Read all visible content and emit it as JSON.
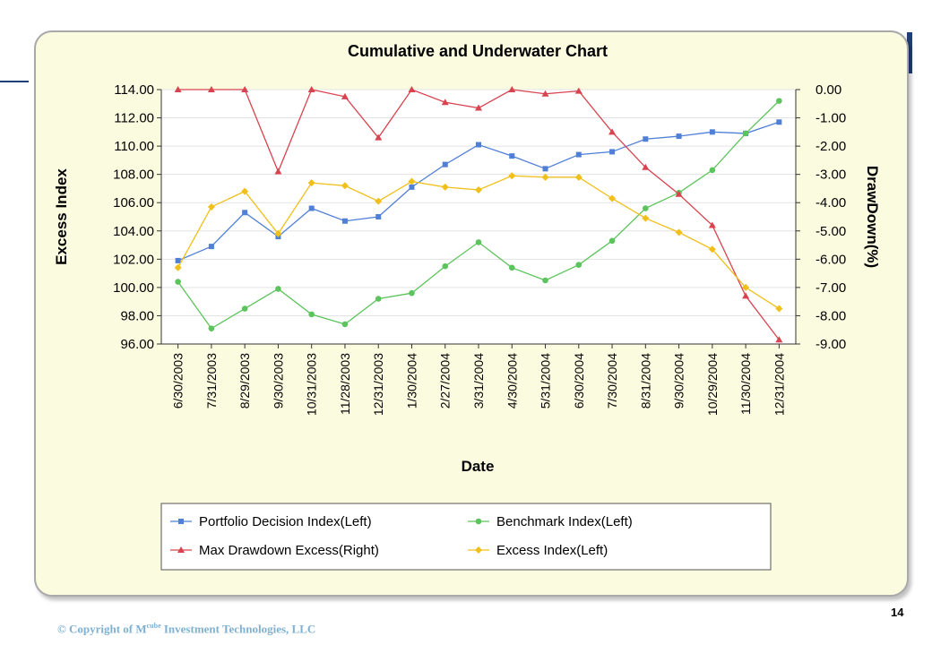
{
  "chart_data": {
    "type": "line",
    "title": "Cumulative and Underwater Chart",
    "xlabel": "Date",
    "ylabel": "Excess Index",
    "y2label": "DrawDown(%)",
    "ylim": [
      96,
      114
    ],
    "y2lim": [
      -9,
      0
    ],
    "yticks": [
      "114.00",
      "112.00",
      "110.00",
      "108.00",
      "106.00",
      "104.00",
      "102.00",
      "100.00",
      "98.00",
      "96.00"
    ],
    "y2ticks": [
      "0.00",
      "-1.00",
      "-2.00",
      "-3.00",
      "-4.00",
      "-5.00",
      "-6.00",
      "-7.00",
      "-8.00",
      "-9.00"
    ],
    "categories": [
      "6/30/2003",
      "7/31/2003",
      "8/29/2003",
      "9/30/2003",
      "10/31/2003",
      "11/28/2003",
      "12/31/2003",
      "1/30/2004",
      "2/27/2004",
      "3/31/2004",
      "4/30/2004",
      "5/31/2004",
      "6/30/2004",
      "7/30/2004",
      "8/31/2004",
      "9/30/2004",
      "10/29/2004",
      "11/30/2004",
      "12/31/2004"
    ],
    "series": [
      {
        "name": "Portfolio Decision Index(Left)",
        "axis": "left",
        "color": "#4f7fd6",
        "marker": "square",
        "values": [
          101.9,
          102.9,
          105.3,
          103.6,
          105.6,
          104.7,
          105.0,
          107.1,
          108.7,
          110.1,
          109.3,
          108.4,
          109.4,
          109.6,
          110.5,
          110.7,
          111.0,
          110.9,
          111.7
        ]
      },
      {
        "name": "Benchmark Index(Left)",
        "axis": "left",
        "color": "#5cc45c",
        "marker": "circle",
        "values": [
          100.4,
          97.1,
          98.5,
          99.9,
          98.1,
          97.4,
          99.2,
          99.6,
          101.5,
          103.2,
          101.4,
          100.5,
          101.6,
          103.3,
          105.6,
          106.7,
          108.3,
          110.9,
          113.2
        ]
      },
      {
        "name": "Max Drawdown Excess(Right)",
        "axis": "right",
        "color": "#d8434f",
        "marker": "triangle",
        "values": [
          0.0,
          0.0,
          0.0,
          -2.9,
          0.0,
          -0.25,
          -1.7,
          0.0,
          -0.45,
          -0.65,
          0.0,
          -0.15,
          -0.05,
          -1.5,
          -2.75,
          -3.7,
          -4.8,
          -7.3,
          -8.85
        ]
      },
      {
        "name": "Excess Index(Left)",
        "axis": "right_hidden_no",
        "color": "#f0bf1a",
        "marker": "diamond",
        "values": [
          101.4,
          105.7,
          106.8,
          103.8,
          107.4,
          107.2,
          106.1,
          107.5,
          107.1,
          106.9,
          107.9,
          107.8,
          107.8,
          106.3,
          104.9,
          103.9,
          102.7,
          100.0,
          98.5
        ]
      }
    ],
    "legend_position": "bottom",
    "grid": "horizontal"
  },
  "footer": {
    "copyright_prefix": "© Copyright of M",
    "copyright_sup": "cube",
    "copyright_suffix": " Investment Technologies, LLC",
    "page_number": "14"
  }
}
